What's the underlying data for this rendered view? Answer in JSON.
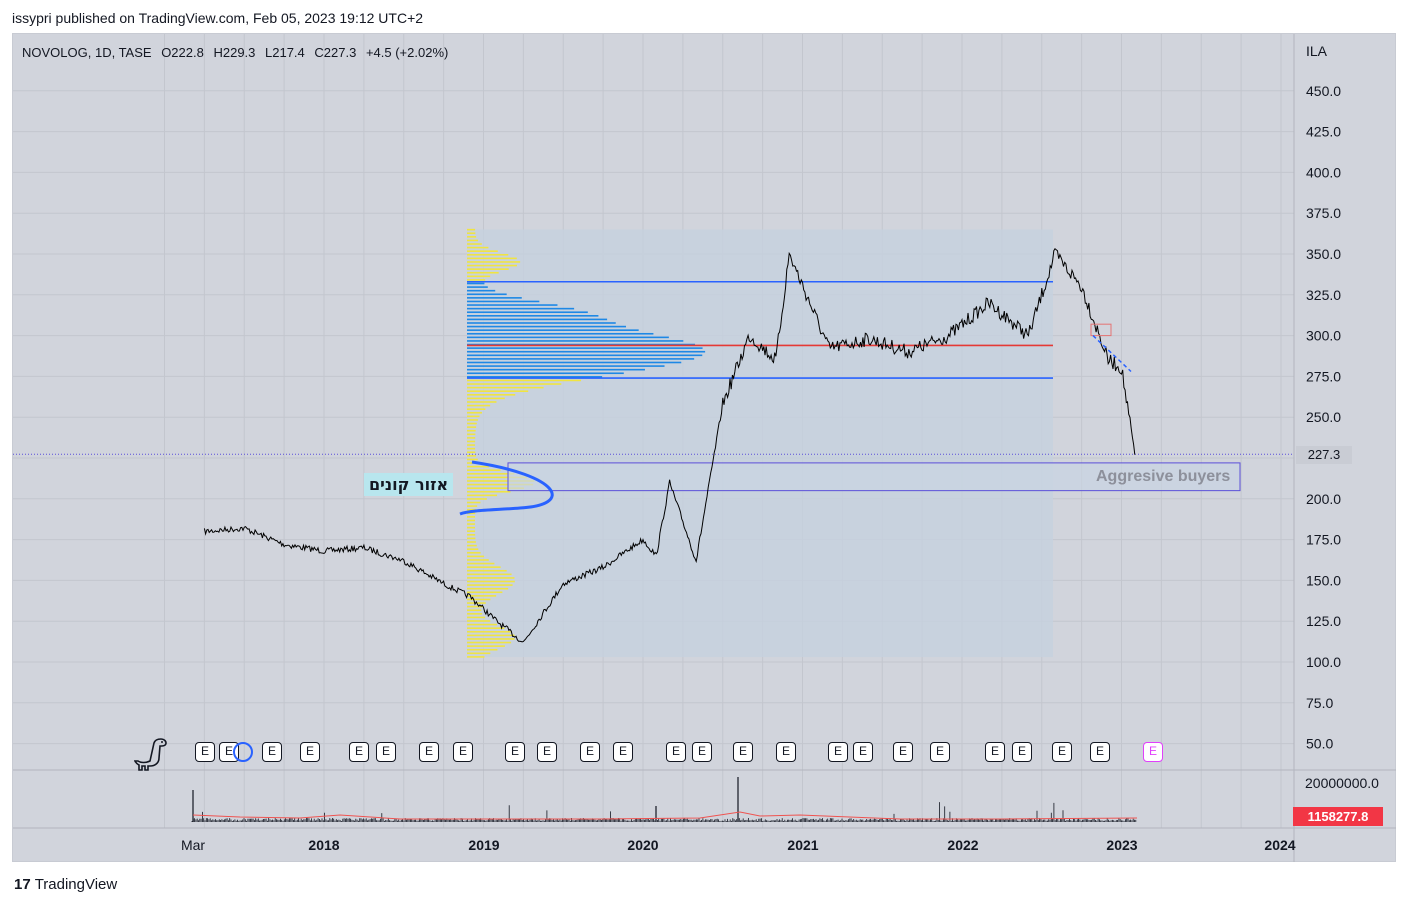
{
  "header": {
    "published_text": "issypri published on TradingView.com, Feb 05, 2023 19:12 UTC+2"
  },
  "legend": {
    "symbol": "NOVOLOG, 1D, TASE",
    "open": "O222.8",
    "high": "H229.3",
    "low": "L217.4",
    "close": "C227.3",
    "change": "+4.5 (+2.02%)"
  },
  "price_scale": {
    "currency": "ILA",
    "current_price_label": "227.3",
    "ticks": [
      "450.0",
      "425.0",
      "400.0",
      "375.0",
      "350.0",
      "325.0",
      "300.0",
      "275.0",
      "250.0",
      "200.0",
      "175.0",
      "150.0",
      "125.0",
      "100.0",
      "75.0",
      "50.0"
    ]
  },
  "volume_scale": {
    "top_label": "20000000.0",
    "current_volume_label": "1158277.8"
  },
  "time_axis": {
    "labels": [
      "Mar",
      "2018",
      "2019",
      "2020",
      "2021",
      "2022",
      "2023",
      "2024"
    ]
  },
  "annotations": {
    "buyers_zone_hebrew": "אזור קונים",
    "aggressive_buyers": "Aggresive buyers"
  },
  "earnings_marker": "E",
  "footer": {
    "brand": "TradingView",
    "logo_glyph": "17"
  },
  "colors": {
    "background": "#d1d4dc",
    "candle": "#000000",
    "profile_yellow": "#f0e442",
    "profile_blue": "#1e88e5",
    "value_area_lines": "#2962ff",
    "poc_line": "#e53935",
    "volume_ma": "#ef5350",
    "current_price_line": "#5b4fd9"
  },
  "chart_data": {
    "type": "line",
    "title": "",
    "symbol": "NOVOLOG",
    "timeframe": "1D",
    "exchange": "TASE",
    "ylim": [
      35,
      475
    ],
    "grid": true,
    "x": [
      "2017-04",
      "2017-07",
      "2017-10",
      "2018-01",
      "2018-04",
      "2018-07",
      "2018-10",
      "2018-12",
      "2019-02",
      "2019-04",
      "2019-07",
      "2019-10",
      "2020-01",
      "2020-02",
      "2020-03",
      "2020-05",
      "2020-07",
      "2020-09",
      "2020-11",
      "2020-12",
      "2021-03",
      "2021-06",
      "2021-09",
      "2021-12",
      "2022-03",
      "2022-06",
      "2022-08",
      "2022-10",
      "2022-12",
      "2023-01",
      "2023-02"
    ],
    "series": [
      {
        "values": [
          180,
          182,
          172,
          168,
          170,
          162,
          148,
          140,
          125,
          112,
          148,
          158,
          175,
          165,
          210,
          162,
          258,
          300,
          285,
          350,
          292,
          298,
          290,
          300,
          320,
          300,
          350,
          330,
          285,
          280,
          227
        ]
      }
    ],
    "volume_profile": {
      "value_area_high": 333,
      "value_area_low": 274,
      "point_of_control": 294,
      "range": [
        103,
        365
      ]
    },
    "zones": [
      {
        "label": "Aggresive buyers",
        "low": 205,
        "high": 222
      }
    ],
    "last": {
      "open": 222.8,
      "high": 229.3,
      "low": 217.4,
      "close": 227.3,
      "change": 4.5,
      "change_pct": 2.02
    },
    "volume_last": 1158277.8
  }
}
